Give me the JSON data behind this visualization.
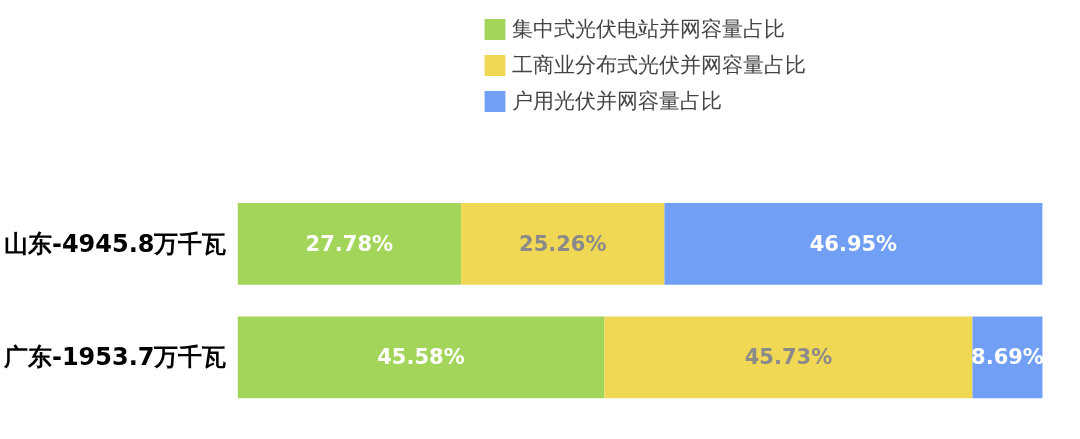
{
  "chart_data": {
    "type": "bar",
    "orientation": "horizontal",
    "stacked": true,
    "legend": "top",
    "grid": false,
    "categories": [
      "山东-4945.8万千瓦",
      "广东-1953.7万千瓦"
    ],
    "series": [
      {
        "name": "集中式光伏电站并网容量占比",
        "color": "#a3d55b",
        "values": [
          27.78,
          45.58
        ],
        "value_labels": [
          "27.78%",
          "45.58%"
        ]
      },
      {
        "name": "工商业分布式光伏并网容量占比",
        "color": "#f0d754",
        "values": [
          25.26,
          45.73
        ],
        "value_labels": [
          "25.26%",
          "45.73%"
        ]
      },
      {
        "name": "户用光伏并网容量占比",
        "color": "#709ff5",
        "values": [
          46.95,
          8.69
        ],
        "value_labels": [
          "46.95%",
          "8.69%"
        ]
      }
    ]
  }
}
